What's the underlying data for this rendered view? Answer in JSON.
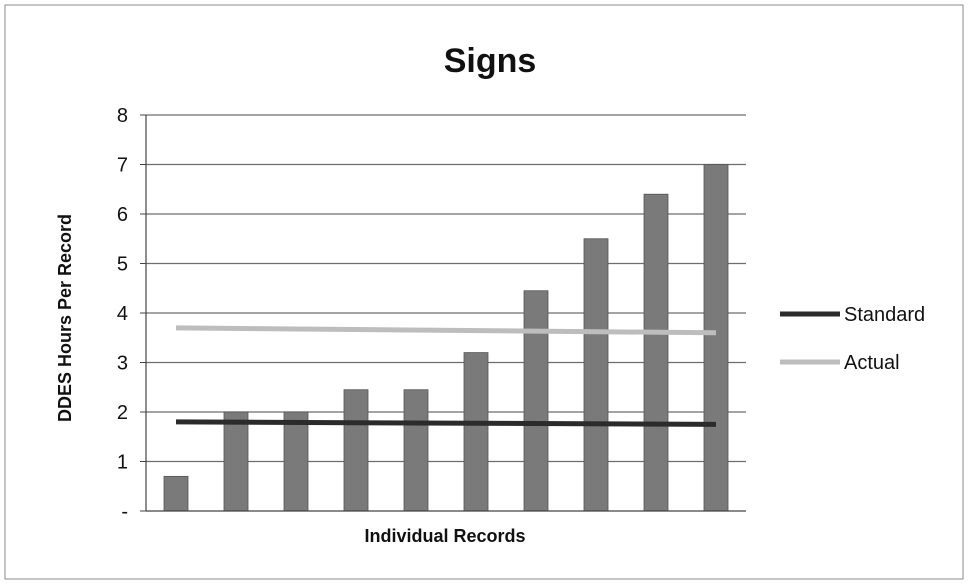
{
  "chart_data": {
    "type": "bar",
    "title": "Signs",
    "xlabel": "Individual Records",
    "ylabel": "DDES Hours Per Record",
    "ylim": [
      0,
      8
    ],
    "yticks": [
      {
        "value": 0,
        "label": "-"
      },
      {
        "value": 1,
        "label": "1"
      },
      {
        "value": 2,
        "label": "2"
      },
      {
        "value": 3,
        "label": "3"
      },
      {
        "value": 4,
        "label": "4"
      },
      {
        "value": 5,
        "label": "5"
      },
      {
        "value": 6,
        "label": "6"
      },
      {
        "value": 7,
        "label": "7"
      },
      {
        "value": 8,
        "label": "8"
      }
    ],
    "grid": true,
    "bars": [
      0.7,
      2.0,
      2.0,
      2.45,
      2.45,
      3.2,
      4.45,
      5.5,
      6.4,
      7.0
    ],
    "reference_lines": [
      {
        "name": "Standard",
        "y_start": 1.8,
        "y_end": 1.75,
        "color": "#2b2b2b"
      },
      {
        "name": "Actual",
        "y_start": 3.7,
        "y_end": 3.6,
        "color": "#bdbdbd"
      }
    ],
    "legend_position": "right",
    "bar_color": "#7a7a7a"
  }
}
